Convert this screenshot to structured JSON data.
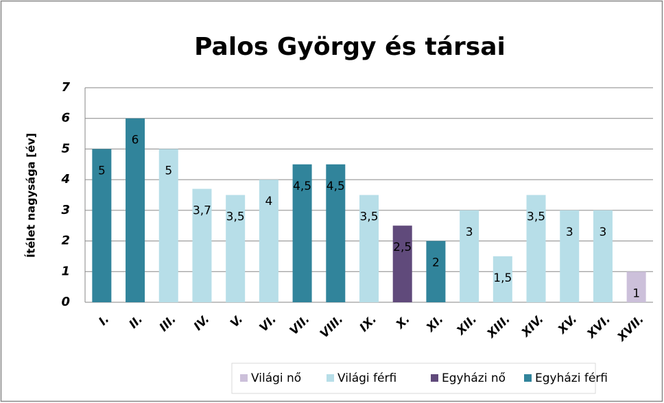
{
  "chart_data": {
    "type": "bar",
    "title": "Palos György és társai",
    "y_label": "Ítélet nagysága [év]",
    "categories": [
      "I.",
      "II.",
      "III.",
      "IV.",
      "V.",
      "VI.",
      "VII.",
      "VIII.",
      "IX.",
      "X.",
      "XI.",
      "XII.",
      "XIII.",
      "XIV.",
      "XV.",
      "XVI.",
      "XVII."
    ],
    "series": [
      {
        "name": "Világi nő",
        "color": "#ccc0da",
        "values": [
          null,
          null,
          null,
          null,
          null,
          null,
          null,
          null,
          null,
          null,
          null,
          null,
          null,
          null,
          null,
          null,
          1
        ],
        "value_labels": [
          null,
          null,
          null,
          null,
          null,
          null,
          null,
          null,
          null,
          null,
          null,
          null,
          null,
          null,
          null,
          null,
          "1"
        ]
      },
      {
        "name": "Világi férfi",
        "color": "#b7dee8",
        "values": [
          null,
          null,
          5,
          3.7,
          3.5,
          4,
          null,
          null,
          3.5,
          null,
          null,
          3,
          1.5,
          3.5,
          3,
          3,
          null
        ],
        "value_labels": [
          null,
          null,
          "5",
          "3,7",
          "3,5",
          "4",
          null,
          null,
          "3,5",
          null,
          null,
          "3",
          "1,5",
          "3,5",
          "3",
          "3",
          null
        ]
      },
      {
        "name": "Egyházi nő",
        "color": "#604a7b",
        "values": [
          null,
          null,
          null,
          null,
          null,
          null,
          null,
          null,
          null,
          2.5,
          null,
          null,
          null,
          null,
          null,
          null,
          null
        ],
        "value_labels": [
          null,
          null,
          null,
          null,
          null,
          null,
          null,
          null,
          null,
          "2,5",
          null,
          null,
          null,
          null,
          null,
          null,
          null
        ]
      },
      {
        "name": "Egyházi férfi",
        "color": "#31849b",
        "values": [
          5,
          6,
          null,
          null,
          null,
          null,
          4.5,
          4.5,
          null,
          null,
          2,
          null,
          null,
          null,
          null,
          null,
          null
        ],
        "value_labels": [
          "5",
          "6",
          null,
          null,
          null,
          null,
          "4,5",
          "4,5",
          null,
          null,
          "2",
          null,
          null,
          null,
          null,
          null,
          null
        ]
      }
    ],
    "ylim": [
      0,
      7
    ],
    "yticks": [
      0,
      1,
      2,
      3,
      4,
      5,
      6,
      7
    ],
    "grid": true,
    "legend": "bottom"
  }
}
